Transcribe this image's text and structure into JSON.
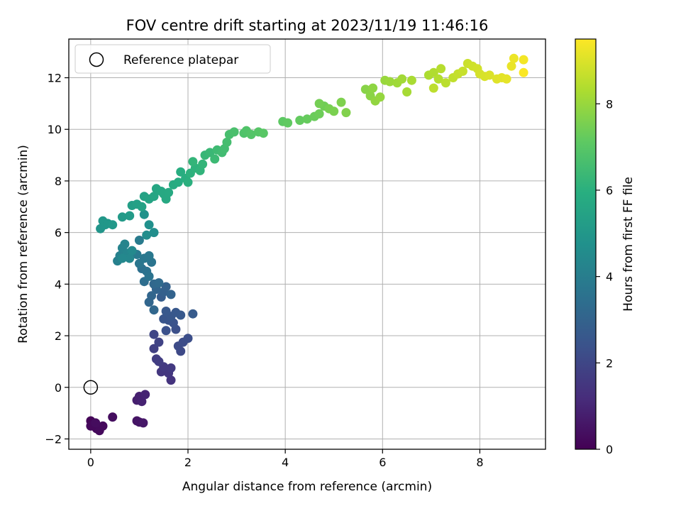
{
  "chart_data": {
    "type": "scatter",
    "title": "FOV centre drift starting at 2023/11/19 11:46:16",
    "xlabel": "Angular distance from reference (arcmin)",
    "ylabel": "Rotation from reference (arcmin)",
    "xlim": [
      -0.45,
      9.35
    ],
    "ylim": [
      -2.4,
      13.5
    ],
    "xticks": [
      0,
      2,
      4,
      6,
      8
    ],
    "yticks": [
      -2,
      0,
      2,
      4,
      6,
      8,
      10,
      12
    ],
    "grid": true,
    "legend": {
      "location": "top-left",
      "entries": [
        "Reference platepar"
      ]
    },
    "reference_point": {
      "x": 0,
      "y": 0,
      "label": "Reference platepar"
    },
    "colorbar": {
      "label": "Hours from first FF file",
      "colormap": "viridis",
      "min": 0,
      "max": 9.5,
      "ticks": [
        0,
        2,
        4,
        6,
        8
      ]
    },
    "series": [
      {
        "name": "FOV centre drift",
        "points": [
          [
            0.0,
            -1.3,
            0.1
          ],
          [
            0.05,
            -1.45,
            0.15
          ],
          [
            0.0,
            -1.5,
            0.2
          ],
          [
            0.12,
            -1.6,
            0.2
          ],
          [
            0.18,
            -1.68,
            0.25
          ],
          [
            0.25,
            -1.5,
            0.25
          ],
          [
            0.1,
            -1.38,
            0.3
          ],
          [
            0.45,
            -1.15,
            0.35
          ],
          [
            0.95,
            -1.3,
            0.5
          ],
          [
            1.0,
            -1.35,
            0.55
          ],
          [
            1.08,
            -1.38,
            0.6
          ],
          [
            0.95,
            -0.5,
            0.8
          ],
          [
            1.0,
            -0.35,
            0.85
          ],
          [
            1.05,
            -0.55,
            0.9
          ],
          [
            1.12,
            -0.28,
            0.95
          ],
          [
            1.65,
            0.28,
            1.4
          ],
          [
            1.6,
            0.55,
            1.5
          ],
          [
            1.45,
            0.6,
            1.5
          ],
          [
            1.65,
            0.75,
            1.6
          ],
          [
            1.5,
            0.8,
            1.6
          ],
          [
            1.4,
            1.0,
            1.7
          ],
          [
            1.35,
            1.1,
            1.7
          ],
          [
            1.3,
            1.5,
            1.8
          ],
          [
            1.4,
            1.75,
            1.9
          ],
          [
            1.3,
            2.05,
            2.0
          ],
          [
            1.85,
            1.4,
            2.1
          ],
          [
            1.8,
            1.6,
            2.15
          ],
          [
            1.9,
            1.75,
            2.2
          ],
          [
            2.0,
            1.9,
            2.25
          ],
          [
            1.75,
            2.25,
            2.3
          ],
          [
            1.55,
            2.2,
            2.35
          ],
          [
            1.7,
            2.5,
            2.4
          ],
          [
            1.6,
            2.6,
            2.45
          ],
          [
            1.5,
            2.65,
            2.5
          ],
          [
            1.65,
            2.75,
            2.55
          ],
          [
            1.75,
            2.9,
            2.6
          ],
          [
            1.55,
            2.95,
            2.6
          ],
          [
            1.85,
            2.8,
            2.65
          ],
          [
            2.1,
            2.85,
            2.7
          ],
          [
            1.45,
            3.5,
            2.8
          ],
          [
            1.5,
            3.7,
            2.9
          ],
          [
            1.55,
            3.9,
            2.95
          ],
          [
            1.65,
            3.6,
            3.0
          ],
          [
            1.35,
            3.8,
            3.05
          ],
          [
            1.25,
            3.55,
            3.1
          ],
          [
            1.2,
            3.3,
            3.1
          ],
          [
            1.3,
            3.0,
            3.15
          ],
          [
            1.3,
            4.0,
            3.2
          ],
          [
            1.4,
            4.05,
            3.25
          ],
          [
            1.1,
            4.1,
            3.4
          ],
          [
            1.05,
            4.6,
            3.5
          ],
          [
            1.15,
            4.5,
            3.55
          ],
          [
            1.2,
            4.3,
            3.6
          ],
          [
            1.25,
            4.85,
            3.65
          ],
          [
            1.0,
            4.8,
            3.7
          ],
          [
            1.1,
            5.0,
            3.75
          ],
          [
            1.2,
            5.1,
            3.8
          ],
          [
            0.95,
            5.15,
            3.85
          ],
          [
            1.0,
            5.7,
            3.9
          ],
          [
            0.55,
            4.9,
            4.1
          ],
          [
            0.6,
            5.1,
            4.15
          ],
          [
            0.65,
            5.4,
            4.2
          ],
          [
            0.7,
            5.55,
            4.25
          ],
          [
            0.75,
            5.2,
            4.3
          ],
          [
            0.8,
            5.0,
            4.35
          ],
          [
            0.65,
            5.0,
            4.4
          ],
          [
            0.85,
            5.3,
            4.45
          ],
          [
            1.15,
            5.9,
            4.6
          ],
          [
            1.3,
            6.0,
            4.65
          ],
          [
            1.2,
            6.3,
            4.7
          ],
          [
            1.1,
            6.7,
            4.8
          ],
          [
            0.2,
            6.15,
            4.9
          ],
          [
            0.3,
            6.3,
            4.95
          ],
          [
            0.25,
            6.45,
            5.0
          ],
          [
            0.35,
            6.35,
            5.0
          ],
          [
            0.45,
            6.3,
            5.05
          ],
          [
            0.65,
            6.6,
            5.1
          ],
          [
            0.8,
            6.65,
            5.15
          ],
          [
            0.85,
            7.05,
            5.3
          ],
          [
            0.95,
            7.1,
            5.35
          ],
          [
            1.05,
            7.0,
            5.4
          ],
          [
            1.1,
            7.4,
            5.45
          ],
          [
            1.2,
            7.3,
            5.5
          ],
          [
            1.3,
            7.4,
            5.55
          ],
          [
            1.35,
            7.7,
            5.6
          ],
          [
            1.45,
            7.6,
            5.65
          ],
          [
            1.5,
            7.5,
            5.7
          ],
          [
            1.55,
            7.3,
            5.7
          ],
          [
            1.6,
            7.55,
            5.75
          ],
          [
            1.7,
            7.85,
            5.8
          ],
          [
            1.8,
            7.95,
            5.85
          ],
          [
            1.85,
            8.35,
            5.9
          ],
          [
            1.95,
            8.1,
            5.95
          ],
          [
            2.0,
            7.95,
            6.0
          ],
          [
            2.05,
            8.3,
            6.05
          ],
          [
            2.15,
            8.5,
            6.1
          ],
          [
            2.25,
            8.4,
            6.15
          ],
          [
            2.3,
            8.65,
            6.2
          ],
          [
            2.1,
            8.75,
            6.2
          ],
          [
            2.35,
            9.0,
            6.3
          ],
          [
            2.45,
            9.1,
            6.35
          ],
          [
            2.55,
            8.85,
            6.4
          ],
          [
            2.6,
            9.2,
            6.45
          ],
          [
            2.7,
            9.1,
            6.5
          ],
          [
            2.75,
            9.25,
            6.55
          ],
          [
            2.8,
            9.5,
            6.6
          ],
          [
            2.85,
            9.8,
            6.65
          ],
          [
            2.95,
            9.9,
            6.7
          ],
          [
            3.15,
            9.85,
            6.8
          ],
          [
            3.2,
            9.95,
            6.85
          ],
          [
            3.3,
            9.8,
            6.9
          ],
          [
            3.45,
            9.9,
            6.95
          ],
          [
            3.55,
            9.85,
            7.0
          ],
          [
            3.95,
            10.3,
            7.1
          ],
          [
            4.05,
            10.25,
            7.15
          ],
          [
            4.3,
            10.35,
            7.2
          ],
          [
            4.45,
            10.4,
            7.25
          ],
          [
            4.6,
            10.5,
            7.3
          ],
          [
            4.7,
            10.6,
            7.35
          ],
          [
            4.8,
            10.9,
            7.4
          ],
          [
            4.7,
            11.0,
            7.45
          ],
          [
            4.9,
            10.8,
            7.5
          ],
          [
            5.0,
            10.7,
            7.55
          ],
          [
            5.15,
            11.05,
            7.6
          ],
          [
            5.25,
            10.65,
            7.65
          ],
          [
            5.65,
            11.55,
            7.75
          ],
          [
            5.75,
            11.3,
            7.8
          ],
          [
            5.8,
            11.6,
            7.85
          ],
          [
            5.85,
            11.1,
            7.9
          ],
          [
            5.95,
            11.25,
            7.95
          ],
          [
            6.05,
            11.9,
            8.0
          ],
          [
            6.15,
            11.85,
            8.05
          ],
          [
            6.3,
            11.8,
            8.1
          ],
          [
            6.4,
            11.95,
            8.15
          ],
          [
            6.5,
            11.45,
            8.2
          ],
          [
            6.6,
            11.9,
            8.25
          ],
          [
            6.95,
            12.1,
            8.3
          ],
          [
            7.05,
            12.2,
            8.35
          ],
          [
            7.15,
            11.95,
            8.4
          ],
          [
            7.2,
            12.35,
            8.45
          ],
          [
            7.3,
            11.8,
            8.5
          ],
          [
            7.05,
            11.6,
            8.55
          ],
          [
            7.45,
            12.0,
            8.6
          ],
          [
            7.55,
            12.15,
            8.65
          ],
          [
            7.65,
            12.25,
            8.7
          ],
          [
            7.75,
            12.55,
            8.75
          ],
          [
            7.85,
            12.45,
            8.8
          ],
          [
            7.95,
            12.35,
            8.85
          ],
          [
            8.0,
            12.15,
            8.9
          ],
          [
            8.1,
            12.05,
            8.95
          ],
          [
            8.2,
            12.1,
            9.0
          ],
          [
            8.35,
            11.95,
            9.05
          ],
          [
            8.45,
            12.0,
            9.1
          ],
          [
            8.55,
            11.95,
            9.15
          ],
          [
            8.65,
            12.45,
            9.2
          ],
          [
            8.7,
            12.75,
            9.25
          ],
          [
            8.9,
            12.7,
            9.35
          ],
          [
            8.9,
            12.2,
            9.45
          ]
        ]
      }
    ]
  }
}
